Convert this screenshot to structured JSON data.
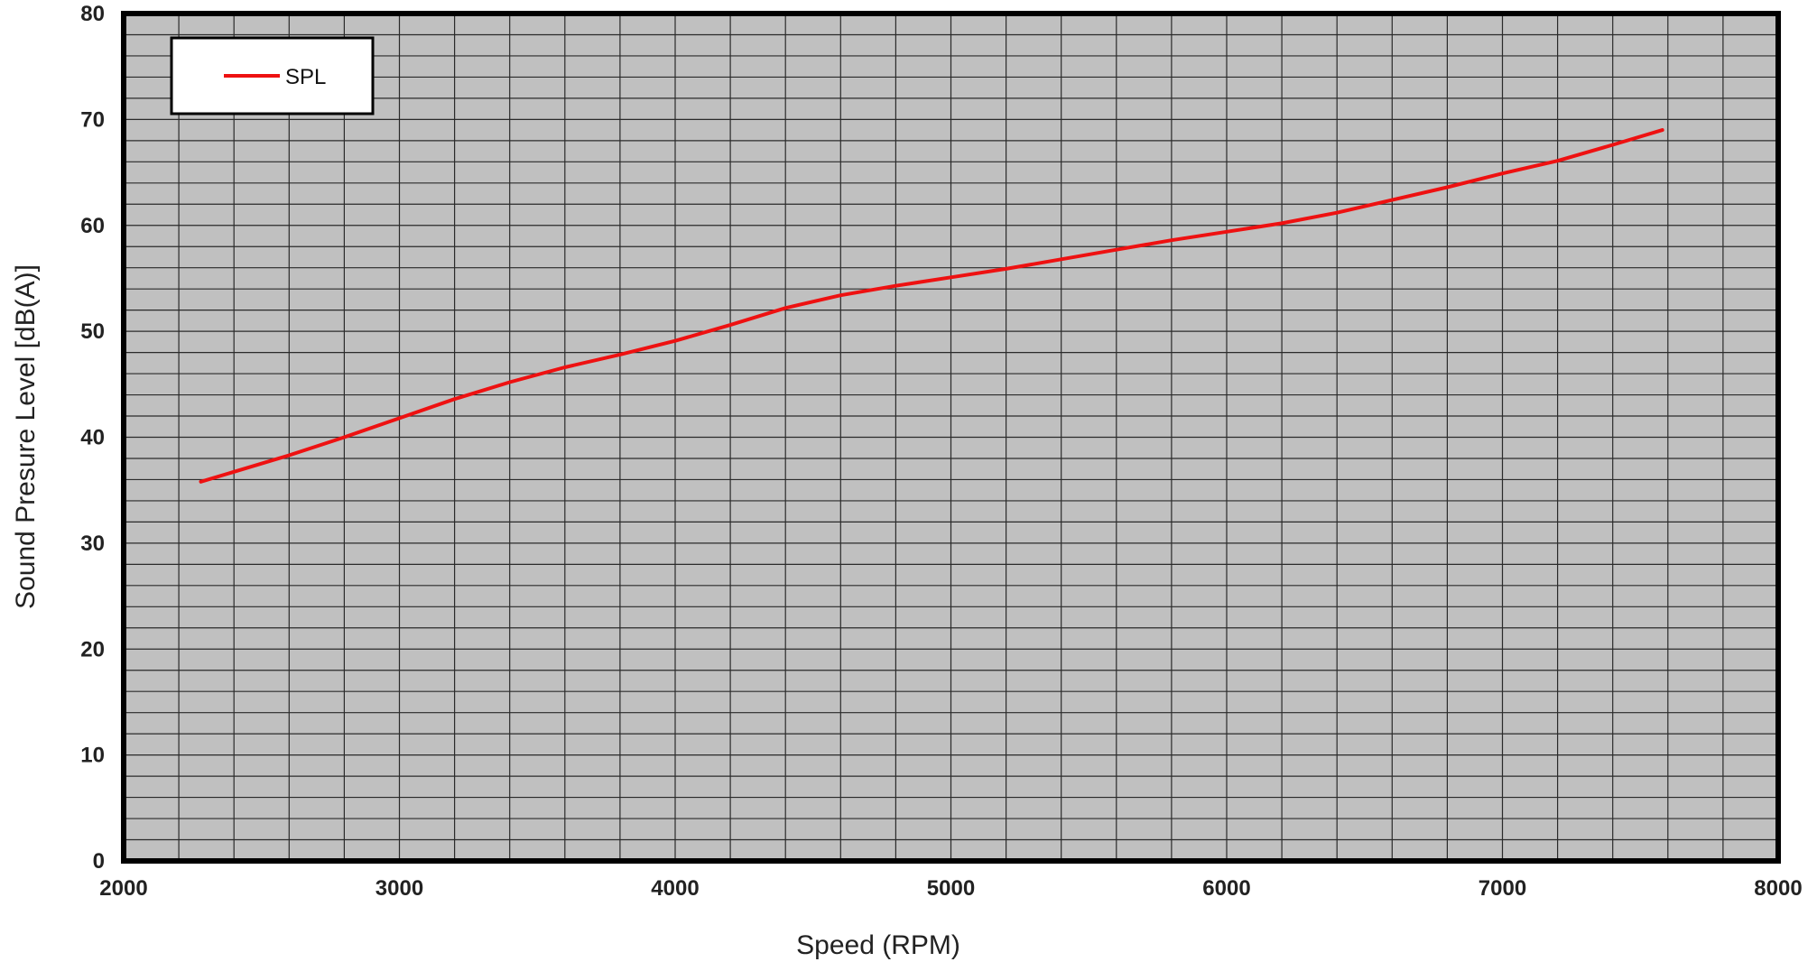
{
  "chart_data": {
    "type": "line",
    "xlabel": "Speed (RPM)",
    "ylabel": "Sound Presure Level  [dB(A)]",
    "xlim": [
      2000,
      8000
    ],
    "ylim": [
      0,
      80
    ],
    "x_ticks": [
      2000,
      3000,
      4000,
      5000,
      6000,
      7000,
      8000
    ],
    "y_ticks": [
      0,
      10,
      20,
      30,
      40,
      50,
      60,
      70,
      80
    ],
    "grid": {
      "on": true,
      "x_minor_step": 200,
      "y_minor_step": 2
    },
    "legend": {
      "position": "top-left",
      "entries": [
        "SPL"
      ]
    },
    "colors": {
      "plot_background": "#c0c0c0",
      "grid": "#2a2a2a",
      "frame": "#000000",
      "series": "#ee1111"
    },
    "series": [
      {
        "name": "SPL",
        "x": [
          2280,
          2600,
          2800,
          3000,
          3200,
          3400,
          3600,
          3800,
          4000,
          4200,
          4400,
          4600,
          4800,
          5000,
          5200,
          5400,
          5600,
          5800,
          6000,
          6200,
          6400,
          6600,
          6800,
          7000,
          7200,
          7400,
          7580
        ],
        "y": [
          35.8,
          38.3,
          40.0,
          41.8,
          43.6,
          45.2,
          46.6,
          47.8,
          49.1,
          50.6,
          52.2,
          53.4,
          54.3,
          55.1,
          55.9,
          56.8,
          57.7,
          58.6,
          59.4,
          60.2,
          61.2,
          62.4,
          63.6,
          64.9,
          66.1,
          67.6,
          69.0
        ]
      }
    ]
  }
}
